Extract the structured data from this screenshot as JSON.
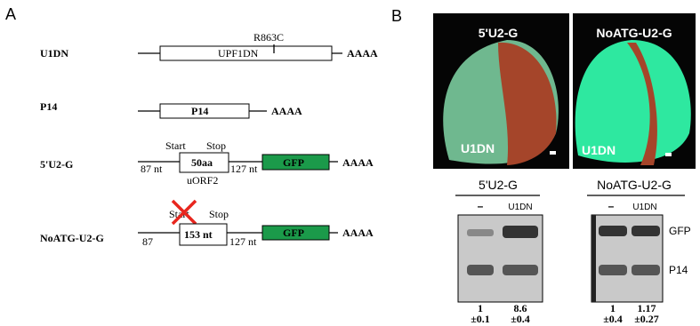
{
  "panel_a": {
    "label": "A",
    "constructs": [
      {
        "name": "U1DN",
        "box": "UPF1DN",
        "mutation": "R863C",
        "tail": "AAAA"
      },
      {
        "name": "P14",
        "box": "P14",
        "tail": "AAAA"
      },
      {
        "name": "5'U2-G",
        "start": "Start",
        "stop": "Stop",
        "left": "87 nt",
        "box": "50aa",
        "below": "uORF2",
        "right": "127 nt",
        "reporter": "GFP",
        "tail": "AAAA"
      },
      {
        "name": "NoATG-U2-G",
        "start": "Start",
        "stop": "Stop",
        "left": "87",
        "box": "153 nt",
        "right": "127 nt",
        "reporter": "GFP",
        "tail": "AAAA"
      }
    ]
  },
  "panel_b": {
    "label": "B",
    "leaves": [
      {
        "title": "5'U2-G",
        "label": "U1DN"
      },
      {
        "title": "NoATG-U2-G",
        "label": "U1DN"
      }
    ],
    "blots": [
      {
        "title": "5'U2-G",
        "lanes": [
          "–",
          "U1DN"
        ],
        "quant": [
          [
            "1",
            "±0.1"
          ],
          [
            "8.6",
            "±0.4"
          ]
        ]
      },
      {
        "title": "NoATG-U2-G",
        "lanes": [
          "–",
          "U1DN"
        ],
        "quant": [
          [
            "1",
            "±0.4"
          ],
          [
            "1.17",
            "±0.27"
          ]
        ]
      }
    ],
    "bands": [
      "GFP",
      "P14"
    ]
  }
}
